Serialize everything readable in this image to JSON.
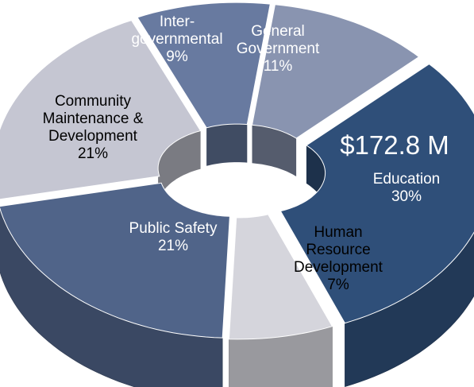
{
  "chart_data": {
    "type": "pie",
    "style": "3d-donut",
    "total_label": "$172.8 M",
    "slices": [
      {
        "name": "Education",
        "lines": [
          "Education",
          "30%"
        ],
        "percent": 30,
        "color": "#2f4f79",
        "text_color": "#ffffff"
      },
      {
        "name": "Human Resource Development",
        "lines": [
          "Human",
          "Resource",
          "Development",
          "7%"
        ],
        "percent": 7,
        "color": "#d5d5dc",
        "text_color": "#000000"
      },
      {
        "name": "Public Safety",
        "lines": [
          "Public Safety",
          "21%"
        ],
        "percent": 21,
        "color": "#506489",
        "text_color": "#ffffff"
      },
      {
        "name": "Community Maintenance & Development",
        "lines": [
          "Community",
          "Maintenance &",
          "Development",
          "21%"
        ],
        "percent": 21,
        "color": "#c5c6d2",
        "text_color": "#000000"
      },
      {
        "name": "Inter-governmental",
        "lines": [
          "Inter-",
          "governmental",
          "9%"
        ],
        "percent": 9,
        "color": "#687aa0",
        "text_color": "#ffffff"
      },
      {
        "name": "General Government",
        "lines": [
          "General",
          "Government",
          "11%"
        ],
        "percent": 11,
        "color": "#8994b0",
        "text_color": "#ffffff"
      }
    ]
  }
}
